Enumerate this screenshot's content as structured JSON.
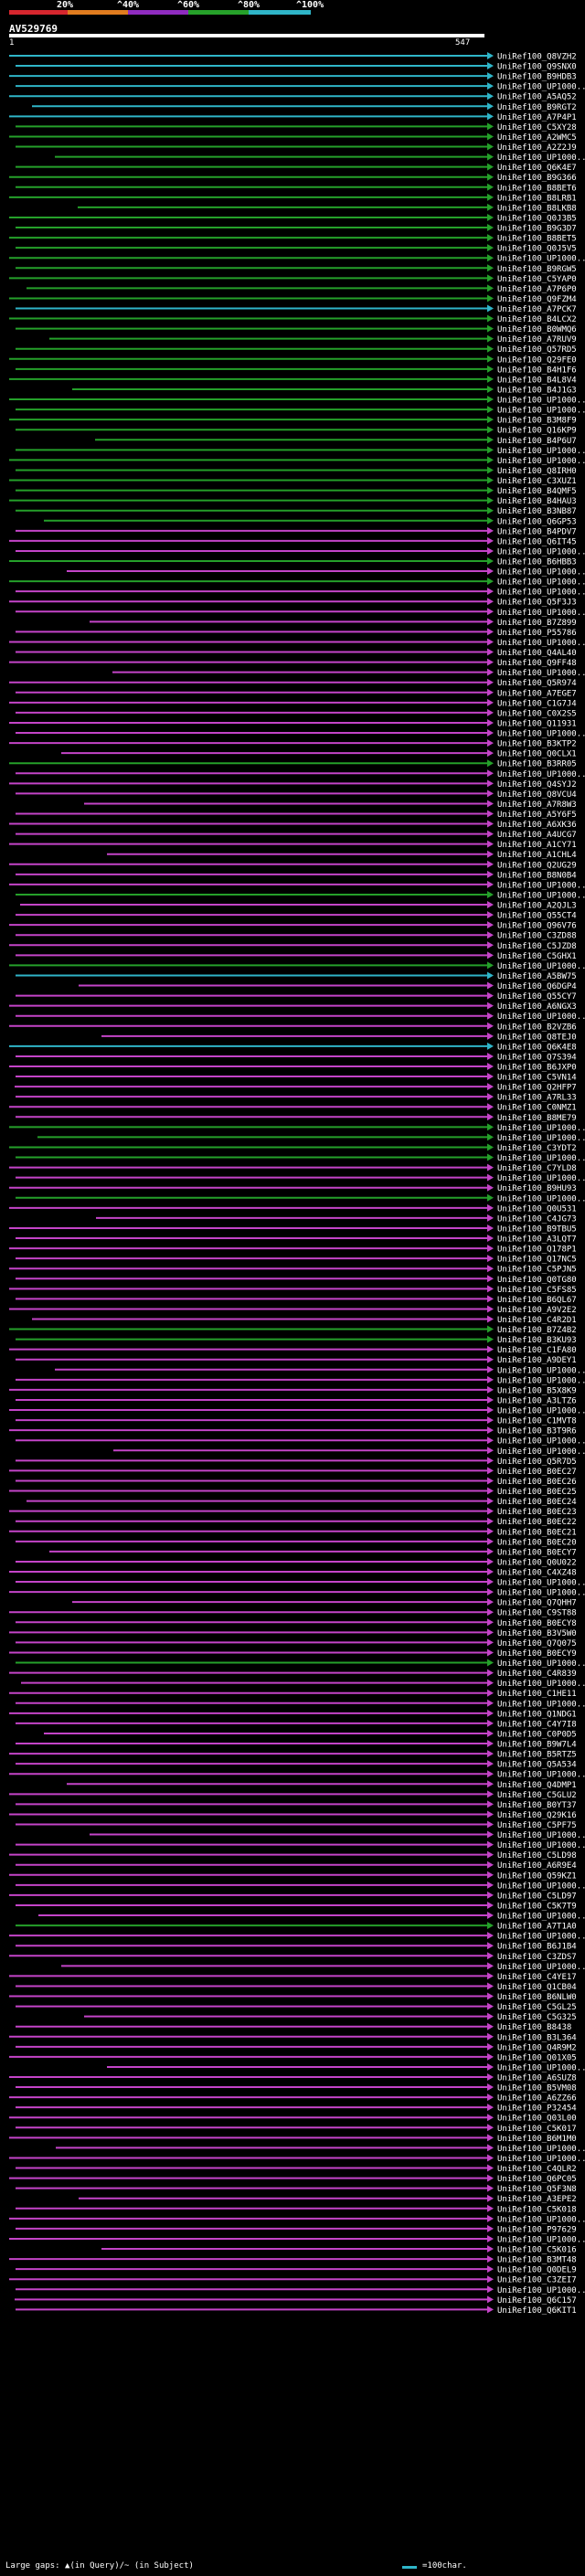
{
  "scale": {
    "ticks": [
      "20%",
      "^40%",
      "^60%",
      "^80%",
      "^100%"
    ],
    "colors": [
      "#d6262e",
      "#e07c1f",
      "#8f2bbf",
      "#26a12a",
      "#2fb5c8"
    ]
  },
  "query": {
    "id": "AV529769",
    "start": "1",
    "end": "547"
  },
  "colors": {
    "cyan": "#2fb5c8",
    "green": "#25a02a",
    "magenta": "#c444c8",
    "dark": "#222"
  },
  "hits": [
    {
      "label": "UniRef100_Q8VZH2",
      "color": "cyan"
    },
    {
      "label": "UniRef100_Q9SNX0",
      "color": "cyan"
    },
    {
      "label": "UniRef100_B9HDB3",
      "color": "cyan"
    },
    {
      "label": "UniRef100_UP1000..",
      "color": "cyan"
    },
    {
      "label": "UniRef100_A5AQ52",
      "color": "cyan"
    },
    {
      "label": "UniRef100_B9RGT2",
      "color": "cyan"
    },
    {
      "label": "UniRef100_A7P4P1",
      "color": "cyan"
    },
    {
      "label": "UniRef100_C5XY28",
      "color": "green"
    },
    {
      "label": "UniRef100_A2WMC5",
      "color": "green"
    },
    {
      "label": "UniRef100_A2Z2J9",
      "color": "green"
    },
    {
      "label": "UniRef100_UP1000..",
      "color": "green"
    },
    {
      "label": "UniRef100_Q6K4E7",
      "color": "green"
    },
    {
      "label": "UniRef100_B9G366",
      "color": "green"
    },
    {
      "label": "UniRef100_B8BET6",
      "color": "green"
    },
    {
      "label": "UniRef100_B8LRB1",
      "color": "green"
    },
    {
      "label": "UniRef100_B8LKB8",
      "color": "green"
    },
    {
      "label": "UniRef100_Q0J3B5",
      "color": "green"
    },
    {
      "label": "UniRef100_B9G3D7",
      "color": "green"
    },
    {
      "label": "UniRef100_B8BET5",
      "color": "green"
    },
    {
      "label": "UniRef100_Q0J5V5",
      "color": "green"
    },
    {
      "label": "UniRef100_UP1000..",
      "color": "green"
    },
    {
      "label": "UniRef100_B9RGW5",
      "color": "green"
    },
    {
      "label": "UniRef100_C5YAP0",
      "color": "green"
    },
    {
      "label": "UniRef100_A7P6P0",
      "color": "green"
    },
    {
      "label": "UniRef100_Q9FZM4",
      "color": "green"
    },
    {
      "label": "UniRef100_A7PCK7",
      "color": "cyan"
    },
    {
      "label": "UniRef100_B4LCX2",
      "color": "green"
    },
    {
      "label": "UniRef100_B0WMQ6",
      "color": "green"
    },
    {
      "label": "UniRef100_A7RUV9",
      "color": "green"
    },
    {
      "label": "UniRef100_Q57RD5",
      "color": "green"
    },
    {
      "label": "UniRef100_Q29FE0",
      "color": "green"
    },
    {
      "label": "UniRef100_B4H1F6",
      "color": "green"
    },
    {
      "label": "UniRef100_B4L8V4",
      "color": "green"
    },
    {
      "label": "UniRef100_B4J1G3",
      "color": "green"
    },
    {
      "label": "UniRef100_UP1000..",
      "color": "green"
    },
    {
      "label": "UniRef100_UP1000..",
      "color": "green"
    },
    {
      "label": "UniRef100_B3M8F9",
      "color": "green"
    },
    {
      "label": "UniRef100_Q16KP9",
      "color": "green"
    },
    {
      "label": "UniRef100_B4P6U7",
      "color": "green"
    },
    {
      "label": "UniRef100_UP1000..",
      "color": "green"
    },
    {
      "label": "UniRef100_UP1000..",
      "color": "green"
    },
    {
      "label": "UniRef100_Q8IRH0",
      "color": "green"
    },
    {
      "label": "UniRef100_C3XUZ1",
      "color": "green"
    },
    {
      "label": "UniRef100_B4QMF5",
      "color": "green"
    },
    {
      "label": "UniRef100_B4HAU3",
      "color": "green"
    },
    {
      "label": "UniRef100_B3NB87",
      "color": "green"
    },
    {
      "label": "UniRef100_Q6GP53",
      "color": "green"
    },
    {
      "label": "UniRef100_B4PDV7",
      "color": "magenta"
    },
    {
      "label": "UniRef100_Q6IT45",
      "color": "magenta"
    },
    {
      "label": "UniRef100_UP1000..",
      "color": "magenta"
    },
    {
      "label": "UniRef100_B6HBB3",
      "color": "green"
    },
    {
      "label": "UniRef100_UP1000..",
      "color": "magenta"
    },
    {
      "label": "UniRef100_UP1000..",
      "color": "green"
    },
    {
      "label": "UniRef100_UP1000..",
      "color": "magenta"
    },
    {
      "label": "UniRef100_Q5F3J3",
      "color": "magenta"
    },
    {
      "label": "UniRef100_UP1000..",
      "color": "magenta"
    },
    {
      "label": "UniRef100_B7Z899",
      "color": "magenta"
    },
    {
      "label": "UniRef100_P55786",
      "color": "magenta"
    },
    {
      "label": "UniRef100_UP1000..",
      "color": "magenta"
    },
    {
      "label": "UniRef100_Q4AL40",
      "color": "magenta"
    },
    {
      "label": "UniRef100_Q9FF48",
      "color": "magenta"
    },
    {
      "label": "UniRef100_UP1000..",
      "color": "magenta"
    },
    {
      "label": "UniRef100_Q5R974",
      "color": "magenta"
    },
    {
      "label": "UniRef100_A7EGE7",
      "color": "magenta"
    },
    {
      "label": "UniRef100_C1G7J4",
      "color": "magenta"
    },
    {
      "label": "UniRef100_C0X2S5",
      "color": "magenta"
    },
    {
      "label": "UniRef100_Q11931",
      "color": "magenta"
    },
    {
      "label": "UniRef100_UP1000..",
      "color": "magenta"
    },
    {
      "label": "UniRef100_B3KTP2",
      "color": "magenta"
    },
    {
      "label": "UniRef100_Q0CLX1",
      "color": "magenta"
    },
    {
      "label": "UniRef100_B3RR05",
      "color": "green"
    },
    {
      "label": "UniRef100_UP1000..",
      "color": "magenta"
    },
    {
      "label": "UniRef100_Q4SYJ2",
      "color": "magenta"
    },
    {
      "label": "UniRef100_Q8VCU4",
      "color": "magenta"
    },
    {
      "label": "UniRef100_A7R8W3",
      "color": "magenta"
    },
    {
      "label": "UniRef100_A5Y6F5",
      "color": "magenta"
    },
    {
      "label": "UniRef100_A6XK36",
      "color": "magenta"
    },
    {
      "label": "UniRef100_A4UCG7",
      "color": "magenta"
    },
    {
      "label": "UniRef100_A1CY71",
      "color": "magenta"
    },
    {
      "label": "UniRef100_A1CHL4",
      "color": "magenta"
    },
    {
      "label": "UniRef100_Q2UG29",
      "color": "magenta"
    },
    {
      "label": "UniRef100_B8N0B4",
      "color": "magenta"
    },
    {
      "label": "UniRef100_UP1000..",
      "color": "magenta"
    },
    {
      "label": "UniRef100_UP1000..",
      "color": "green"
    },
    {
      "label": "UniRef100_A2QJL3",
      "color": "magenta"
    },
    {
      "label": "UniRef100_Q55CT4",
      "color": "magenta"
    },
    {
      "label": "UniRef100_Q96V76",
      "color": "magenta"
    },
    {
      "label": "UniRef100_C3ZD88",
      "color": "magenta"
    },
    {
      "label": "UniRef100_C5JZD8",
      "color": "magenta"
    },
    {
      "label": "UniRef100_C5GHX1",
      "color": "magenta"
    },
    {
      "label": "UniRef100_UP1000..",
      "color": "green"
    },
    {
      "label": "UniRef100_A5BW75",
      "color": "cyan"
    },
    {
      "label": "UniRef100_Q6DGP4",
      "color": "magenta"
    },
    {
      "label": "UniRef100_Q55CY7",
      "color": "magenta"
    },
    {
      "label": "UniRef100_A6NGX3",
      "color": "magenta"
    },
    {
      "label": "UniRef100_UP1000..",
      "color": "magenta"
    },
    {
      "label": "UniRef100_B2VZB6",
      "color": "magenta"
    },
    {
      "label": "UniRef100_Q8TEJ0",
      "color": "magenta"
    },
    {
      "label": "UniRef100_Q6K4E8",
      "color": "cyan"
    },
    {
      "label": "UniRef100_Q7S394",
      "color": "magenta"
    },
    {
      "label": "UniRef100_B6JXP0",
      "color": "magenta"
    },
    {
      "label": "UniRef100_C5VN14",
      "color": "magenta"
    },
    {
      "label": "UniRef100_Q2HFP7",
      "color": "magenta"
    },
    {
      "label": "UniRef100_A7RL33",
      "color": "magenta"
    },
    {
      "label": "UniRef100_C0NMZ1",
      "color": "magenta"
    },
    {
      "label": "UniRef100_B8ME79",
      "color": "magenta"
    },
    {
      "label": "UniRef100_UP1000..",
      "color": "green"
    },
    {
      "label": "UniRef100_UP1000..",
      "color": "green"
    },
    {
      "label": "UniRef100_C3YDT2",
      "color": "green"
    },
    {
      "label": "UniRef100_UP1000..",
      "color": "green"
    },
    {
      "label": "UniRef100_C7YLD8",
      "color": "magenta"
    },
    {
      "label": "UniRef100_UP1000..",
      "color": "magenta"
    },
    {
      "label": "UniRef100_B9HU93",
      "color": "magenta"
    },
    {
      "label": "UniRef100_UP1000..",
      "color": "green"
    },
    {
      "label": "UniRef100_Q0U531",
      "color": "magenta"
    },
    {
      "label": "UniRef100_C4JG73",
      "color": "magenta"
    },
    {
      "label": "UniRef100_B9TBU5",
      "color": "magenta"
    },
    {
      "label": "UniRef100_A3LQT7",
      "color": "magenta"
    },
    {
      "label": "UniRef100_Q178P1",
      "color": "magenta"
    },
    {
      "label": "UniRef100_Q17NC5",
      "color": "magenta"
    },
    {
      "label": "UniRef100_C5PJN5",
      "color": "magenta"
    },
    {
      "label": "UniRef100_Q0TG80",
      "color": "magenta"
    },
    {
      "label": "UniRef100_C5FS85",
      "color": "magenta"
    },
    {
      "label": "UniRef100_B6QL67",
      "color": "magenta"
    },
    {
      "label": "UniRef100_A9V2E2",
      "color": "magenta"
    },
    {
      "label": "UniRef100_C4R2D1",
      "color": "magenta"
    },
    {
      "label": "UniRef100_B7Z4B2",
      "color": "green"
    },
    {
      "label": "UniRef100_B3KU93",
      "color": "green"
    },
    {
      "label": "UniRef100_C1FA80",
      "color": "magenta"
    },
    {
      "label": "UniRef100_A9DEY1",
      "color": "magenta"
    },
    {
      "label": "UniRef100_UP1000..",
      "color": "magenta"
    },
    {
      "label": "UniRef100_UP1000..",
      "color": "magenta"
    },
    {
      "label": "UniRef100_B5X8K9",
      "color": "magenta"
    },
    {
      "label": "UniRef100_A3LTZ6",
      "color": "magenta"
    },
    {
      "label": "UniRef100_UP1000..",
      "color": "magenta"
    },
    {
      "label": "UniRef100_C1MVT8",
      "color": "magenta"
    },
    {
      "label": "UniRef100_B3T9R6",
      "color": "magenta"
    },
    {
      "label": "UniRef100_UP1000..",
      "color": "magenta"
    },
    {
      "label": "UniRef100_UP1000..",
      "color": "magenta"
    },
    {
      "label": "UniRef100_Q5R7D5",
      "color": "magenta"
    },
    {
      "label": "UniRef100_B0EC27",
      "color": "magenta"
    },
    {
      "label": "UniRef100_B0EC26",
      "color": "magenta"
    },
    {
      "label": "UniRef100_B0EC25",
      "color": "magenta"
    },
    {
      "label": "UniRef100_B0EC24",
      "color": "magenta"
    },
    {
      "label": "UniRef100_B0EC23",
      "color": "magenta"
    },
    {
      "label": "UniRef100_B0EC22",
      "color": "magenta"
    },
    {
      "label": "UniRef100_B0EC21",
      "color": "magenta"
    },
    {
      "label": "UniRef100_B0EC20",
      "color": "magenta"
    },
    {
      "label": "UniRef100_B0ECY7",
      "color": "magenta"
    },
    {
      "label": "UniRef100_Q0U022",
      "color": "magenta"
    },
    {
      "label": "UniRef100_C4XZ48",
      "color": "magenta"
    },
    {
      "label": "UniRef100_UP1000..",
      "color": "magenta"
    },
    {
      "label": "UniRef100_UP1000..",
      "color": "magenta"
    },
    {
      "label": "UniRef100_Q7QHH7",
      "color": "magenta"
    },
    {
      "label": "UniRef100_C9ST88",
      "color": "magenta"
    },
    {
      "label": "UniRef100_B0ECY8",
      "color": "magenta"
    },
    {
      "label": "UniRef100_B3V5W0",
      "color": "magenta"
    },
    {
      "label": "UniRef100_Q7Q075",
      "color": "magenta"
    },
    {
      "label": "UniRef100_B0ECY9",
      "color": "magenta"
    },
    {
      "label": "UniRef100_UP1000..",
      "color": "green"
    },
    {
      "label": "UniRef100_C4R839",
      "color": "magenta"
    },
    {
      "label": "UniRef100_UP1000..",
      "color": "magenta"
    },
    {
      "label": "UniRef100_C1HE11",
      "color": "magenta"
    },
    {
      "label": "UniRef100_UP1000..",
      "color": "magenta"
    },
    {
      "label": "UniRef100_Q1NDG1",
      "color": "magenta"
    },
    {
      "label": "UniRef100_C4Y7I8",
      "color": "magenta"
    },
    {
      "label": "UniRef100_C0P0D5",
      "color": "magenta"
    },
    {
      "label": "UniRef100_B9W7L4",
      "color": "magenta"
    },
    {
      "label": "UniRef100_B5RTZ5",
      "color": "magenta"
    },
    {
      "label": "UniRef100_Q5A534",
      "color": "magenta"
    },
    {
      "label": "UniRef100_UP1000..",
      "color": "magenta"
    },
    {
      "label": "UniRef100_Q4DMP1",
      "color": "magenta"
    },
    {
      "label": "UniRef100_C5GLU2",
      "color": "magenta"
    },
    {
      "label": "UniRef100_B0YT37",
      "color": "magenta"
    },
    {
      "label": "UniRef100_Q29K16",
      "color": "magenta"
    },
    {
      "label": "UniRef100_C5PF75",
      "color": "magenta"
    },
    {
      "label": "UniRef100_UP1000..",
      "color": "magenta"
    },
    {
      "label": "UniRef100_UP1000..",
      "color": "magenta"
    },
    {
      "label": "UniRef100_C5LD98",
      "color": "magenta"
    },
    {
      "label": "UniRef100_A6R9E4",
      "color": "magenta"
    },
    {
      "label": "UniRef100_Q59KZ1",
      "color": "magenta"
    },
    {
      "label": "UniRef100_UP1000..",
      "color": "magenta"
    },
    {
      "label": "UniRef100_C5LD97",
      "color": "magenta"
    },
    {
      "label": "UniRef100_C5K7T9",
      "color": "magenta"
    },
    {
      "label": "UniRef100_UP1000..",
      "color": "magenta"
    },
    {
      "label": "UniRef100_A7T1A0",
      "color": "green"
    },
    {
      "label": "UniRef100_UP1000..",
      "color": "magenta"
    },
    {
      "label": "UniRef100_B6J1B4",
      "color": "magenta"
    },
    {
      "label": "UniRef100_C3ZDS7",
      "color": "magenta"
    },
    {
      "label": "UniRef100_UP1000..",
      "color": "magenta"
    },
    {
      "label": "UniRef100_C4YE17",
      "color": "magenta"
    },
    {
      "label": "UniRef100_Q1CB04",
      "color": "magenta"
    },
    {
      "label": "UniRef100_B6NLW0",
      "color": "magenta"
    },
    {
      "label": "UniRef100_C5GL25",
      "color": "magenta"
    },
    {
      "label": "UniRef100_C5G325",
      "color": "magenta"
    },
    {
      "label": "UniRef100_B8438",
      "color": "magenta"
    },
    {
      "label": "UniRef100_B3L364",
      "color": "magenta"
    },
    {
      "label": "UniRef100_Q4R9M2",
      "color": "magenta"
    },
    {
      "label": "UniRef100_Q01X05",
      "color": "magenta"
    },
    {
      "label": "UniRef100_UP1000..",
      "color": "magenta"
    },
    {
      "label": "UniRef100_A6SUZ8",
      "color": "magenta"
    },
    {
      "label": "UniRef100_B5VM08",
      "color": "magenta"
    },
    {
      "label": "UniRef100_A6ZZ66",
      "color": "magenta"
    },
    {
      "label": "UniRef100_P32454",
      "color": "magenta"
    },
    {
      "label": "UniRef100_Q03L00",
      "color": "magenta"
    },
    {
      "label": "UniRef100_C5K017",
      "color": "magenta"
    },
    {
      "label": "UniRef100_B6M1M0",
      "color": "magenta"
    },
    {
      "label": "UniRef100_UP1000..",
      "color": "magenta"
    },
    {
      "label": "UniRef100_UP1000..",
      "color": "magenta"
    },
    {
      "label": "UniRef100_C4QLR2",
      "color": "magenta"
    },
    {
      "label": "UniRef100_Q6PC05",
      "color": "magenta"
    },
    {
      "label": "UniRef100_Q5F3N8",
      "color": "magenta"
    },
    {
      "label": "UniRef100_A3EPE2",
      "color": "magenta"
    },
    {
      "label": "UniRef100_C5K018",
      "color": "magenta"
    },
    {
      "label": "UniRef100_UP1000..",
      "color": "magenta"
    },
    {
      "label": "UniRef100_P97629",
      "color": "magenta"
    },
    {
      "label": "UniRef100_UP1000..",
      "color": "magenta"
    },
    {
      "label": "UniRef100_C5K016",
      "color": "magenta"
    },
    {
      "label": "UniRef100_B3MT48",
      "color": "magenta"
    },
    {
      "label": "UniRef100_Q0DEL9",
      "color": "magenta"
    },
    {
      "label": "UniRef100_C3ZEI7",
      "color": "magenta"
    },
    {
      "label": "UniRef100_UP1000..",
      "color": "magenta"
    },
    {
      "label": "UniRef100_Q6C157",
      "color": "magenta"
    },
    {
      "label": "UniRef100_Q6KIT1",
      "color": "magenta"
    }
  ],
  "footer": {
    "legend": "Large gaps: ▲(in Query)/~ (in Subject)",
    "scale_label": "=100char."
  }
}
